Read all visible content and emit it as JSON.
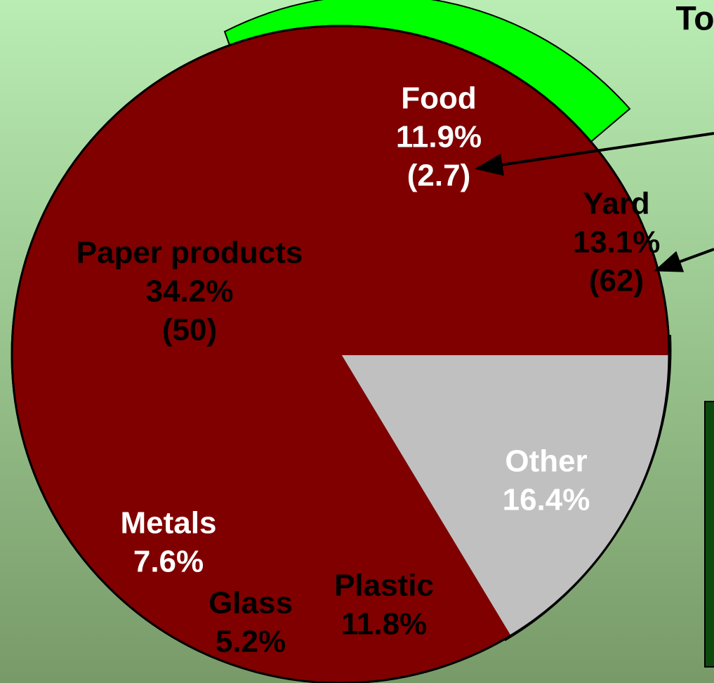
{
  "chart_data": {
    "type": "pie",
    "title": "To",
    "categories": [
      "Other",
      "Plastic",
      "Glass",
      "Metals",
      "Paper products",
      "Food",
      "Yard"
    ],
    "values": [
      16.4,
      11.8,
      5.2,
      7.6,
      34.2,
      11.9,
      13.1
    ],
    "value_labels": [
      "16.4%",
      "11.8%",
      "5.2%",
      "7.6%",
      "34.2%",
      "11.9%",
      "13.1%"
    ],
    "amount_labels": [
      null,
      null,
      null,
      null,
      "(50)",
      "(2.7)",
      "(62)"
    ],
    "colors": [
      "#c0c0c0",
      "#800000",
      "#800000",
      "#800000",
      "#800000",
      "#800000",
      "#800000"
    ]
  }
}
